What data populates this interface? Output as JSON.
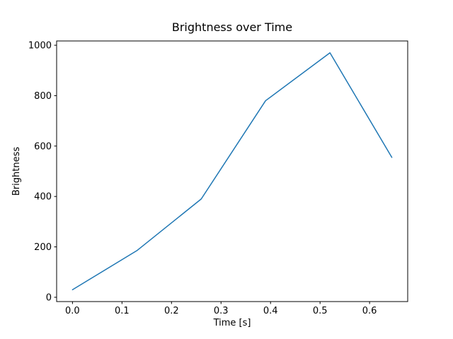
{
  "figure": {
    "background": "#ffffff"
  },
  "chart_data": {
    "type": "line",
    "title": "Brightness over Time",
    "xlabel": "Time [s]",
    "ylabel": "Brightness",
    "x": [
      0.0,
      0.13,
      0.26,
      0.39,
      0.52,
      0.645
    ],
    "y": [
      30,
      185,
      390,
      780,
      970,
      555
    ],
    "xlim": [
      -0.032,
      0.677
    ],
    "ylim": [
      -17,
      1017
    ],
    "xticks": [
      0.0,
      0.1,
      0.2,
      0.3,
      0.4,
      0.5,
      0.6
    ],
    "yticks": [
      0,
      200,
      400,
      600,
      800,
      1000
    ],
    "grid": false,
    "legend_position": "none",
    "line_color": "#1f77b4",
    "line_width": 1.5
  }
}
